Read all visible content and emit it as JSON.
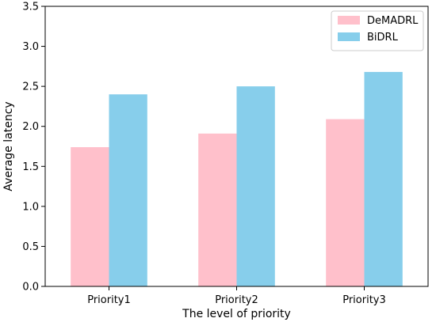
{
  "chart_data": {
    "type": "bar",
    "categories": [
      "Priority1",
      "Priority2",
      "Priority3"
    ],
    "series": [
      {
        "name": "DeMADRL",
        "values": [
          1.74,
          1.91,
          2.09
        ],
        "color": "#ffc0cb"
      },
      {
        "name": "BiDRL",
        "values": [
          2.4,
          2.5,
          2.68
        ],
        "color": "#87ceeb"
      }
    ],
    "title": "",
    "xlabel": "The level of priority",
    "ylabel": "Average latency",
    "ylim": [
      0,
      3.5
    ],
    "yticks": [
      "0.0",
      "0.5",
      "1.0",
      "1.5",
      "2.0",
      "2.5",
      "3.0",
      "3.5"
    ],
    "grid": false,
    "legend_position": "top-right"
  }
}
